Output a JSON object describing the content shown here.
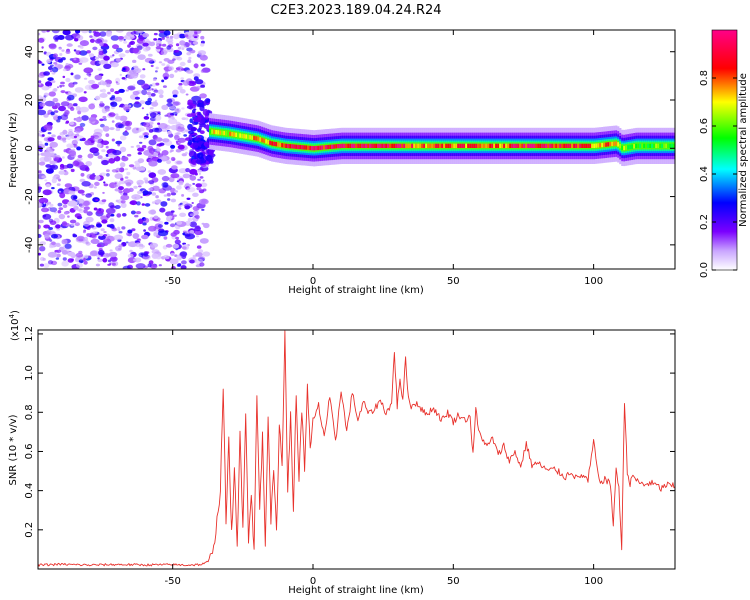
{
  "title": "C2E3.2023.189.04.24.R24",
  "chart_data": [
    {
      "type": "heatmap",
      "xlabel": "Height of straight line (km)",
      "ylabel": "Frequency (Hz)",
      "xlim": [
        -98,
        129
      ],
      "ylim": [
        -50,
        49
      ],
      "x_ticks": [
        -50,
        0,
        50,
        100
      ],
      "y_ticks": [
        -40,
        -20,
        0,
        20,
        40
      ],
      "colorbar": {
        "label": "Normalized spectral amplitude",
        "range": [
          0.0,
          1.0
        ],
        "ticks": [
          0.0,
          0.2,
          0.4,
          0.6,
          0.8
        ],
        "tick_labels": [
          "0.0",
          "0.2",
          "0.4",
          "0.6",
          "0.8"
        ],
        "colormap": [
          "#ffffff",
          "#7b00ff",
          "#0000ff",
          "#00ffff",
          "#00ff00",
          "#ffff00",
          "#ff0000",
          "#ff0088"
        ]
      },
      "noise_region": {
        "x_range": [
          -98,
          -38
        ],
        "freq_range": [
          -50,
          49
        ]
      },
      "signal_band": {
        "x": [
          -37,
          -30,
          -20,
          -15,
          -10,
          0,
          10,
          20,
          30,
          40,
          50,
          60,
          70,
          80,
          90,
          100,
          108,
          110,
          115,
          129
        ],
        "center_freq": [
          7,
          6,
          4,
          2,
          1,
          0,
          1,
          1,
          1,
          1,
          1,
          1,
          1,
          1,
          1,
          1,
          2,
          0,
          1,
          1
        ],
        "peak_amplitude": [
          0.65,
          0.7,
          0.75,
          0.8,
          0.85,
          0.9,
          0.95,
          0.9,
          0.9,
          0.8,
          0.85,
          0.8,
          0.85,
          0.95,
          0.9,
          0.8,
          0.75,
          0.6,
          0.6,
          0.55
        ]
      }
    },
    {
      "type": "line",
      "xlabel": "Height of straight line (km)",
      "ylabel": "SNR (10 * v/v)",
      "multiplier_label": "(x10",
      "multiplier_exp": "4",
      "xlim": [
        -98,
        129
      ],
      "ylim": [
        0,
        12200
      ],
      "x_ticks": [
        -50,
        0,
        50,
        100
      ],
      "y_ticks": [
        2000,
        4000,
        6000,
        8000,
        10000,
        12000
      ],
      "y_tick_labels": [
        "0.2",
        "0.4",
        "0.6",
        "0.8",
        "1.0",
        "1.2"
      ],
      "color": "#e8322c",
      "series": [
        {
          "x": [
            -98,
            -90,
            -80,
            -70,
            -60,
            -50,
            -45,
            -40,
            -37,
            -35,
            -33,
            -32,
            -31,
            -30,
            -29,
            -28,
            -27,
            -26,
            -25,
            -24,
            -23,
            -22,
            -21,
            -20,
            -19,
            -18,
            -17,
            -16,
            -15,
            -14,
            -13,
            -12,
            -11,
            -10,
            -9,
            -8,
            -7,
            -6,
            -5,
            -4,
            -3,
            -2,
            -1,
            0,
            2,
            4,
            6,
            8,
            10,
            12,
            14,
            16,
            18,
            20,
            22,
            24,
            26,
            28,
            29,
            30,
            31,
            32,
            33,
            34,
            35,
            37,
            40,
            43,
            46,
            48,
            50,
            52,
            54,
            56,
            57,
            58,
            59,
            60,
            62,
            64,
            66,
            68,
            70,
            72,
            74,
            76,
            78,
            80,
            82,
            84,
            86,
            88,
            90,
            92,
            94,
            96,
            98,
            100,
            102,
            104,
            106,
            107,
            108,
            109,
            110,
            111,
            112,
            113,
            114,
            116,
            118,
            120,
            122,
            124,
            126,
            129
          ],
          "y": [
            200,
            240,
            200,
            230,
            210,
            220,
            200,
            230,
            350,
            1500,
            4000,
            9300,
            2500,
            6500,
            1800,
            5000,
            1000,
            7000,
            2200,
            8000,
            1500,
            4000,
            800,
            8800,
            3000,
            6800,
            1200,
            8000,
            2500,
            5000,
            1800,
            7500,
            5200,
            12200,
            4000,
            7800,
            3000,
            9000,
            4500,
            8200,
            5000,
            9500,
            6000,
            7500,
            8300,
            6800,
            8700,
            6400,
            9200,
            7000,
            9000,
            7600,
            8500,
            7900,
            8200,
            8600,
            8000,
            8400,
            11100,
            8300,
            9800,
            8500,
            10800,
            8700,
            8300,
            8500,
            7900,
            8200,
            7600,
            8000,
            7500,
            7900,
            7600,
            7800,
            5800,
            8200,
            7000,
            6800,
            6200,
            6700,
            5800,
            6300,
            5500,
            6000,
            5200,
            6400,
            5300,
            5400,
            5200,
            5000,
            5100,
            4900,
            4700,
            5000,
            4600,
            4800,
            4500,
            6500,
            4400,
            4600,
            4300,
            2300,
            5000,
            4200,
            1000,
            8600,
            5000,
            4300,
            4800,
            4400,
            4300,
            4400,
            4300,
            4100,
            4300,
            4200
          ]
        }
      ]
    }
  ]
}
